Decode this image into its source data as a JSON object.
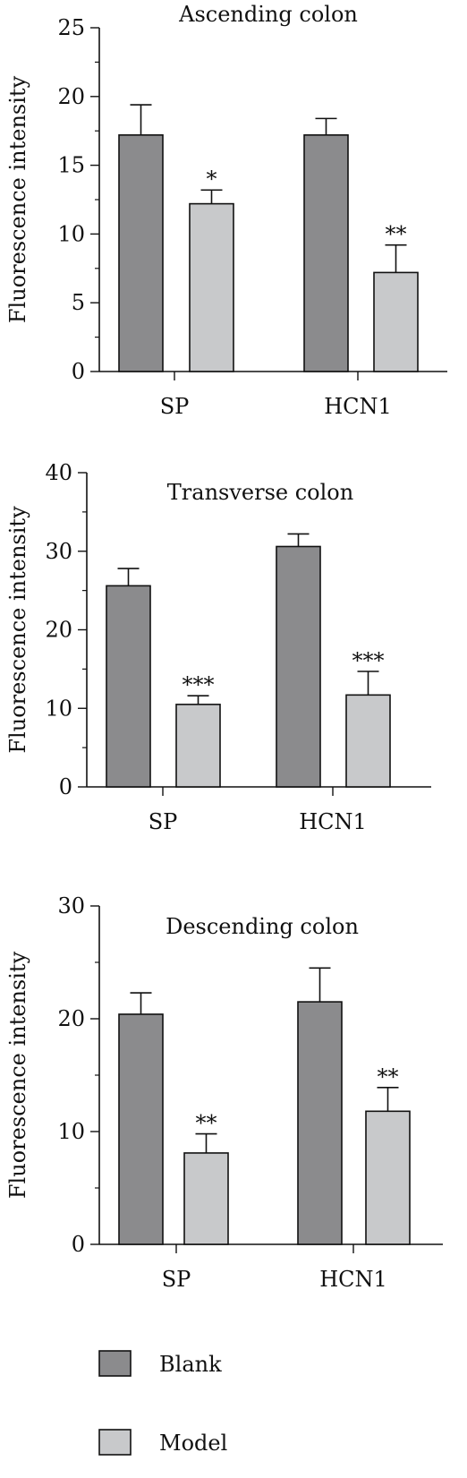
{
  "chart_data": [
    {
      "type": "bar",
      "title": "Ascending colon",
      "ylabel": "Fluorescence intensity",
      "xlabel": "",
      "categories": [
        "SP",
        "HCN1"
      ],
      "ylim": [
        0,
        25
      ],
      "yticks": [
        0,
        5,
        10,
        15,
        20,
        25
      ],
      "series": [
        {
          "name": "Blank",
          "values": [
            17.2,
            17.2
          ],
          "errors": [
            2.2,
            1.2
          ]
        },
        {
          "name": "Model",
          "values": [
            12.2,
            7.2
          ],
          "errors": [
            1.0,
            2.0
          ]
        }
      ],
      "annotations": [
        {
          "series": "Model",
          "category": "SP",
          "text": "*"
        },
        {
          "series": "Model",
          "category": "HCN1",
          "text": "**"
        }
      ]
    },
    {
      "type": "bar",
      "title": "Transverse colon",
      "ylabel": "Fluorescence intensity",
      "xlabel": "",
      "categories": [
        "SP",
        "HCN1"
      ],
      "ylim": [
        0,
        40
      ],
      "yticks": [
        0,
        10,
        20,
        30,
        40
      ],
      "series": [
        {
          "name": "Blank",
          "values": [
            25.6,
            30.6
          ],
          "errors": [
            2.2,
            1.6
          ]
        },
        {
          "name": "Model",
          "values": [
            10.5,
            11.7
          ],
          "errors": [
            1.1,
            3.0
          ]
        }
      ],
      "annotations": [
        {
          "series": "Model",
          "category": "SP",
          "text": "***"
        },
        {
          "series": "Model",
          "category": "HCN1",
          "text": "***"
        }
      ]
    },
    {
      "type": "bar",
      "title": "Descending colon",
      "ylabel": "Fluorescence intensity",
      "xlabel": "",
      "categories": [
        "SP",
        "HCN1"
      ],
      "ylim": [
        0,
        30
      ],
      "yticks": [
        0,
        10,
        20,
        30
      ],
      "series": [
        {
          "name": "Blank",
          "values": [
            20.4,
            21.5
          ],
          "errors": [
            1.9,
            3.0
          ]
        },
        {
          "name": "Model",
          "values": [
            8.1,
            11.8
          ],
          "errors": [
            1.7,
            2.1
          ]
        }
      ],
      "annotations": [
        {
          "series": "Model",
          "category": "SP",
          "text": "**"
        },
        {
          "series": "Model",
          "category": "HCN1",
          "text": "**"
        }
      ]
    }
  ],
  "legend": {
    "position": "bottom-left",
    "items": [
      {
        "label": "Blank",
        "color": "#8b8b8d"
      },
      {
        "label": "Model",
        "color": "#c8c9cb"
      }
    ]
  }
}
